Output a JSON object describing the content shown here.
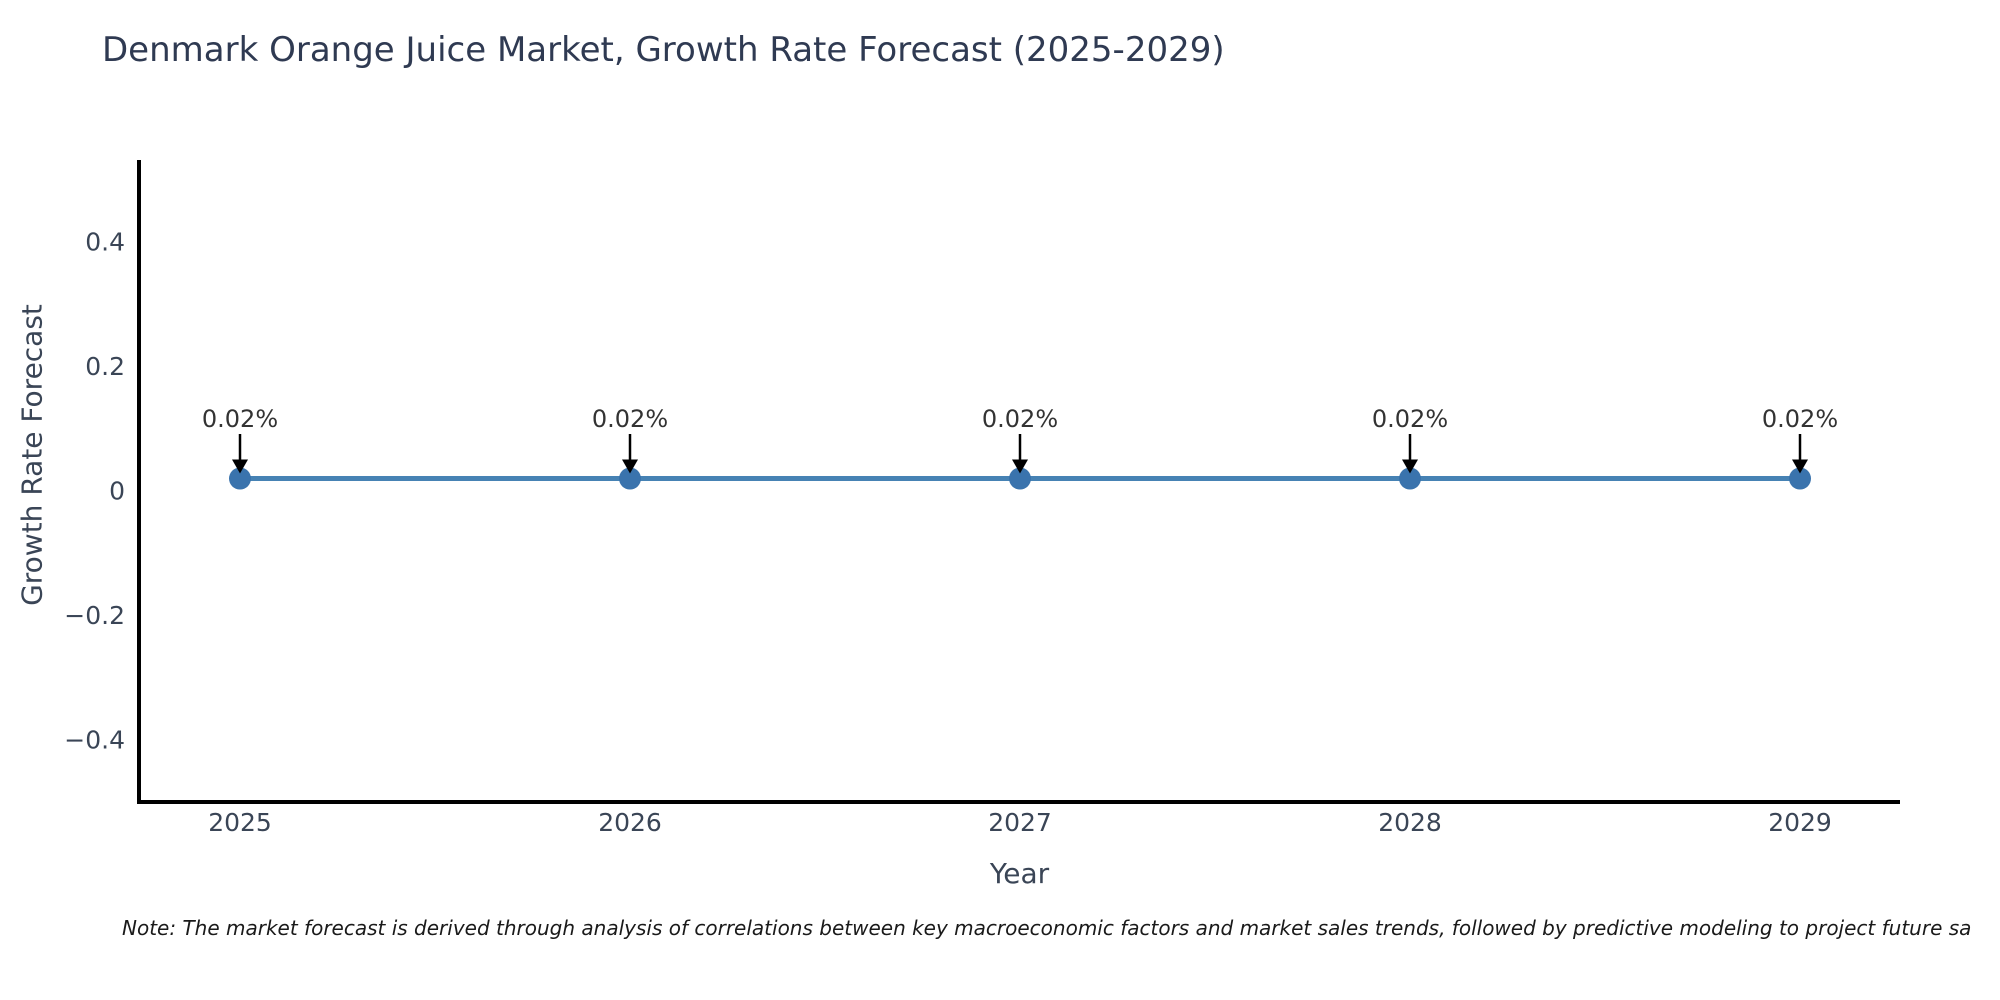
{
  "chart_data": {
    "type": "line",
    "title": "Denmark Orange Juice Market, Growth Rate Forecast (2025-2029)",
    "xlabel": "Year",
    "ylabel": "Growth Rate Forecast",
    "x": [
      2025,
      2026,
      2027,
      2028,
      2029
    ],
    "series": [
      {
        "name": "Growth Rate Forecast",
        "values": [
          0.02,
          0.02,
          0.02,
          0.02,
          0.02
        ],
        "point_labels": [
          "0.02%",
          "0.02%",
          "0.02%",
          "0.02%",
          "0.02%"
        ]
      }
    ],
    "xtick_labels": [
      "2025",
      "2026",
      "2027",
      "2028",
      "2029"
    ],
    "yticks": [
      0.4,
      0.2,
      0,
      -0.2,
      -0.4
    ],
    "ytick_labels": [
      "0.4",
      "0.2",
      "0",
      "−0.2",
      "−0.4"
    ],
    "ylim": [
      -0.5,
      0.53
    ],
    "grid": false,
    "legend_position": "none",
    "annotation_style": "down-arrow",
    "colors": {
      "line": "#4682b4",
      "marker": "#3a73ad",
      "arrow": "#000000",
      "spine": "#000000",
      "tick_text": "#3a4556",
      "annotation_text": "#333333",
      "title_text": "#2f3a52"
    }
  },
  "note": "Note: The market forecast is derived through analysis of correlations between key macroeconomic factors and market sales trends, followed by predictive modeling to project future sa"
}
